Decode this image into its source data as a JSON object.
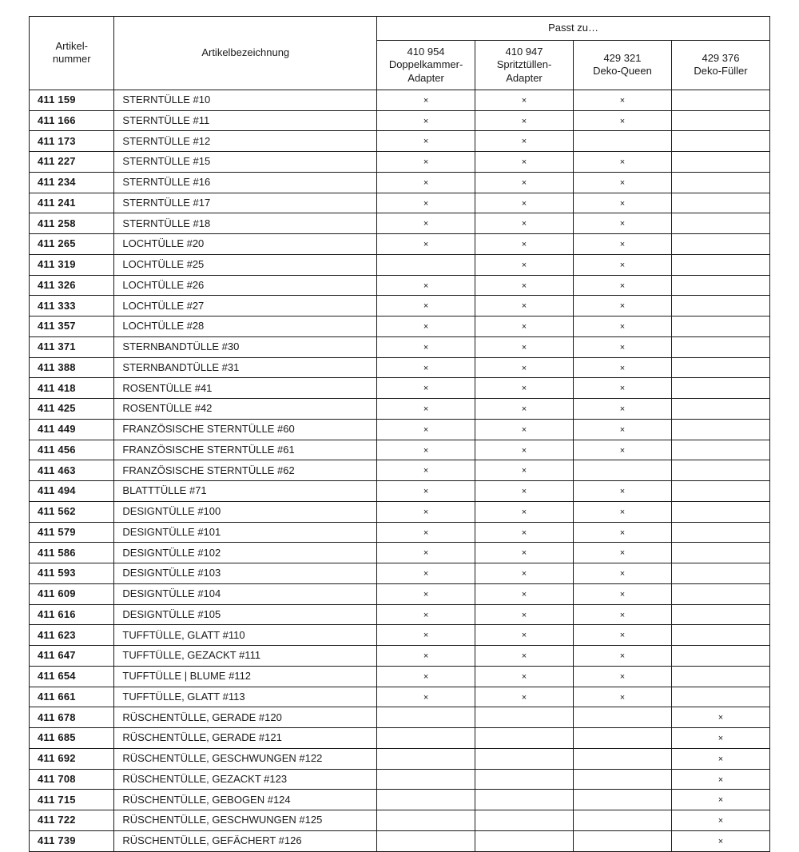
{
  "table": {
    "type": "table",
    "background_color": "#ffffff",
    "border_color": "#1a1a1a",
    "text_color": "#1a1a1a",
    "mark_glyph": "×",
    "header": {
      "artikelnummer": "Artikel-\nnummer",
      "artikelbezeichnung": "Artikelbezeichnung",
      "passt_zu": "Passt zu…",
      "fit_columns": [
        {
          "code": "410 954",
          "label": "Doppelkammer-\nAdapter"
        },
        {
          "code": "410 947",
          "label": "Spritztüllen-\nAdapter"
        },
        {
          "code": "429 321",
          "label": "Deko-Queen"
        },
        {
          "code": "429 376",
          "label": "Deko-Füller"
        }
      ]
    },
    "rows": [
      {
        "artnum": "411 159",
        "name": "STERNTÜLLE #10",
        "fits": [
          true,
          true,
          true,
          false
        ]
      },
      {
        "artnum": "411 166",
        "name": "STERNTÜLLE #11",
        "fits": [
          true,
          true,
          true,
          false
        ]
      },
      {
        "artnum": "411 173",
        "name": "STERNTÜLLE #12",
        "fits": [
          true,
          true,
          false,
          false
        ]
      },
      {
        "artnum": "411 227",
        "name": "STERNTÜLLE #15",
        "fits": [
          true,
          true,
          true,
          false
        ]
      },
      {
        "artnum": "411 234",
        "name": "STERNTÜLLE #16",
        "fits": [
          true,
          true,
          true,
          false
        ]
      },
      {
        "artnum": "411 241",
        "name": "STERNTÜLLE #17",
        "fits": [
          true,
          true,
          true,
          false
        ]
      },
      {
        "artnum": "411 258",
        "name": "STERNTÜLLE #18",
        "fits": [
          true,
          true,
          true,
          false
        ]
      },
      {
        "artnum": "411 265",
        "name": "LOCHTÜLLE #20",
        "fits": [
          true,
          true,
          true,
          false
        ]
      },
      {
        "artnum": "411 319",
        "name": "LOCHTÜLLE #25",
        "fits": [
          false,
          true,
          true,
          false
        ]
      },
      {
        "artnum": "411 326",
        "name": "LOCHTÜLLE #26",
        "fits": [
          true,
          true,
          true,
          false
        ]
      },
      {
        "artnum": "411 333",
        "name": "LOCHTÜLLE #27",
        "fits": [
          true,
          true,
          true,
          false
        ]
      },
      {
        "artnum": "411 357",
        "name": "LOCHTÜLLE #28",
        "fits": [
          true,
          true,
          true,
          false
        ]
      },
      {
        "artnum": "411 371",
        "name": "STERNBANDTÜLLE #30",
        "fits": [
          true,
          true,
          true,
          false
        ]
      },
      {
        "artnum": "411 388",
        "name": "STERNBANDTÜLLE #31",
        "fits": [
          true,
          true,
          true,
          false
        ]
      },
      {
        "artnum": "411 418",
        "name": "ROSENTÜLLE #41",
        "fits": [
          true,
          true,
          true,
          false
        ]
      },
      {
        "artnum": "411 425",
        "name": "ROSENTÜLLE #42",
        "fits": [
          true,
          true,
          true,
          false
        ]
      },
      {
        "artnum": "411 449",
        "name": "FRANZÖSISCHE STERNTÜLLE #60",
        "fits": [
          true,
          true,
          true,
          false
        ]
      },
      {
        "artnum": "411 456",
        "name": "FRANZÖSISCHE STERNTÜLLE #61",
        "fits": [
          true,
          true,
          true,
          false
        ]
      },
      {
        "artnum": "411 463",
        "name": "FRANZÖSISCHE STERNTÜLLE #62",
        "fits": [
          true,
          true,
          false,
          false
        ]
      },
      {
        "artnum": "411 494",
        "name": "BLATTTÜLLE #71",
        "fits": [
          true,
          true,
          true,
          false
        ]
      },
      {
        "artnum": "411 562",
        "name": "DESIGNTÜLLE #100",
        "fits": [
          true,
          true,
          true,
          false
        ]
      },
      {
        "artnum": "411 579",
        "name": "DESIGNTÜLLE #101",
        "fits": [
          true,
          true,
          true,
          false
        ]
      },
      {
        "artnum": "411 586",
        "name": "DESIGNTÜLLE #102",
        "fits": [
          true,
          true,
          true,
          false
        ]
      },
      {
        "artnum": "411 593",
        "name": "DESIGNTÜLLE #103",
        "fits": [
          true,
          true,
          true,
          false
        ]
      },
      {
        "artnum": "411 609",
        "name": "DESIGNTÜLLE #104",
        "fits": [
          true,
          true,
          true,
          false
        ]
      },
      {
        "artnum": "411 616",
        "name": "DESIGNTÜLLE #105",
        "fits": [
          true,
          true,
          true,
          false
        ]
      },
      {
        "artnum": "411 623",
        "name": "TUFFTÜLLE, GLATT #110",
        "fits": [
          true,
          true,
          true,
          false
        ]
      },
      {
        "artnum": "411 647",
        "name": "TUFFTÜLLE, GEZACKT #111",
        "fits": [
          true,
          true,
          true,
          false
        ]
      },
      {
        "artnum": "411 654",
        "name": "TUFFTÜLLE | BLUME #112",
        "fits": [
          true,
          true,
          true,
          false
        ]
      },
      {
        "artnum": "411 661",
        "name": "TUFFTÜLLE, GLATT #113",
        "fits": [
          true,
          true,
          true,
          false
        ]
      },
      {
        "artnum": "411 678",
        "name": "RÜSCHENTÜLLE, GERADE #120",
        "fits": [
          false,
          false,
          false,
          true
        ]
      },
      {
        "artnum": "411 685",
        "name": "RÜSCHENTÜLLE, GERADE #121",
        "fits": [
          false,
          false,
          false,
          true
        ]
      },
      {
        "artnum": "411 692",
        "name": "RÜSCHENTÜLLE, GESCHWUNGEN #122",
        "fits": [
          false,
          false,
          false,
          true
        ]
      },
      {
        "artnum": "411 708",
        "name": "RÜSCHENTÜLLE, GEZACKT #123",
        "fits": [
          false,
          false,
          false,
          true
        ]
      },
      {
        "artnum": "411 715",
        "name": "RÜSCHENTÜLLE, GEBOGEN #124",
        "fits": [
          false,
          false,
          false,
          true
        ]
      },
      {
        "artnum": "411 722",
        "name": "RÜSCHENTÜLLE, GESCHWUNGEN #125",
        "fits": [
          false,
          false,
          false,
          true
        ]
      },
      {
        "artnum": "411 739",
        "name": "RÜSCHENTÜLLE, GEFÄCHERT #126",
        "fits": [
          false,
          false,
          false,
          true
        ]
      }
    ]
  }
}
